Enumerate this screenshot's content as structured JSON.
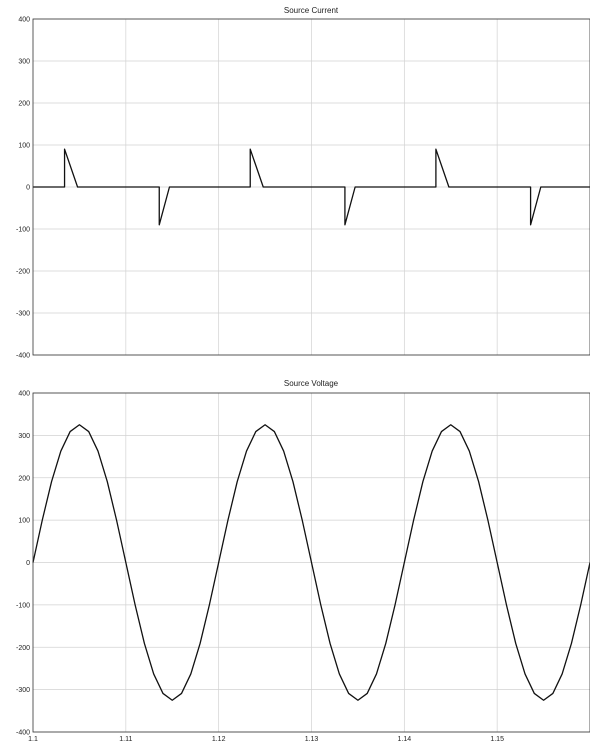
{
  "chart_data": [
    {
      "type": "line",
      "title": "Source Current",
      "xlabel": "",
      "ylabel": "",
      "xlim": [
        1.1,
        1.16
      ],
      "ylim": [
        -400,
        400
      ],
      "yticks": [
        400,
        300,
        200,
        100,
        0,
        -100,
        -200,
        -300,
        -400
      ],
      "ytick_labels": [
        "400",
        "300",
        "200",
        "100",
        "0",
        "-100",
        "-200",
        "-300",
        "-400"
      ],
      "xticks": [
        1.1,
        1.11,
        1.12,
        1.13,
        1.14,
        1.15
      ],
      "xtick_labels": [],
      "grid": true,
      "series": [
        {
          "color": "#111111",
          "x": [
            1.1,
            1.1034,
            1.1034,
            1.1048,
            1.1136,
            1.1136,
            1.1147,
            1.1234,
            1.1234,
            1.1248,
            1.1336,
            1.1336,
            1.1347,
            1.1434,
            1.1434,
            1.1448,
            1.1536,
            1.1536,
            1.1547,
            1.16
          ],
          "y": [
            0,
            0,
            90,
            0,
            0,
            -90,
            0,
            0,
            90,
            0,
            0,
            -90,
            0,
            0,
            90,
            0,
            0,
            -90,
            0,
            0
          ]
        }
      ]
    },
    {
      "type": "line",
      "title": "Source Voltage",
      "xlabel": "",
      "ylabel": "",
      "xlim": [
        1.1,
        1.16
      ],
      "ylim": [
        -400,
        400
      ],
      "yticks": [
        400,
        300,
        200,
        100,
        0,
        -100,
        -200,
        -300,
        -400
      ],
      "ytick_labels": [
        "400",
        "300",
        "200",
        "100",
        "0",
        "-100",
        "-200",
        "-300",
        "-400"
      ],
      "xticks": [
        1.1,
        1.11,
        1.12,
        1.13,
        1.14,
        1.15
      ],
      "xtick_labels": [
        "1.1",
        "1.11",
        "1.12",
        "1.13",
        "1.14",
        "1.15"
      ],
      "grid": true,
      "series": [
        {
          "color": "#111111",
          "x": [
            1.1,
            1.101,
            1.102,
            1.103,
            1.104,
            1.105,
            1.106,
            1.107,
            1.108,
            1.109,
            1.11,
            1.111,
            1.112,
            1.113,
            1.114,
            1.115,
            1.116,
            1.117,
            1.118,
            1.119,
            1.12,
            1.121,
            1.122,
            1.123,
            1.124,
            1.125,
            1.126,
            1.127,
            1.128,
            1.129,
            1.13,
            1.131,
            1.132,
            1.133,
            1.134,
            1.135,
            1.136,
            1.137,
            1.138,
            1.139,
            1.14,
            1.141,
            1.142,
            1.143,
            1.144,
            1.145,
            1.146,
            1.147,
            1.148,
            1.149,
            1.15,
            1.151,
            1.152,
            1.153,
            1.154,
            1.155,
            1.156,
            1.157,
            1.158,
            1.159,
            1.16
          ],
          "y": [
            0,
            100,
            191,
            263,
            309,
            325,
            309,
            263,
            191,
            100,
            0,
            -100,
            -191,
            -263,
            -309,
            -325,
            -309,
            -263,
            -191,
            -100,
            0,
            100,
            191,
            263,
            309,
            325,
            309,
            263,
            191,
            100,
            0,
            -100,
            -191,
            -263,
            -309,
            -325,
            -309,
            -263,
            -191,
            -100,
            0,
            100,
            191,
            263,
            309,
            325,
            309,
            263,
            191,
            100,
            0,
            -100,
            -191,
            -263,
            -309,
            -325,
            -309,
            -263,
            -191,
            -100,
            0
          ]
        }
      ]
    }
  ]
}
